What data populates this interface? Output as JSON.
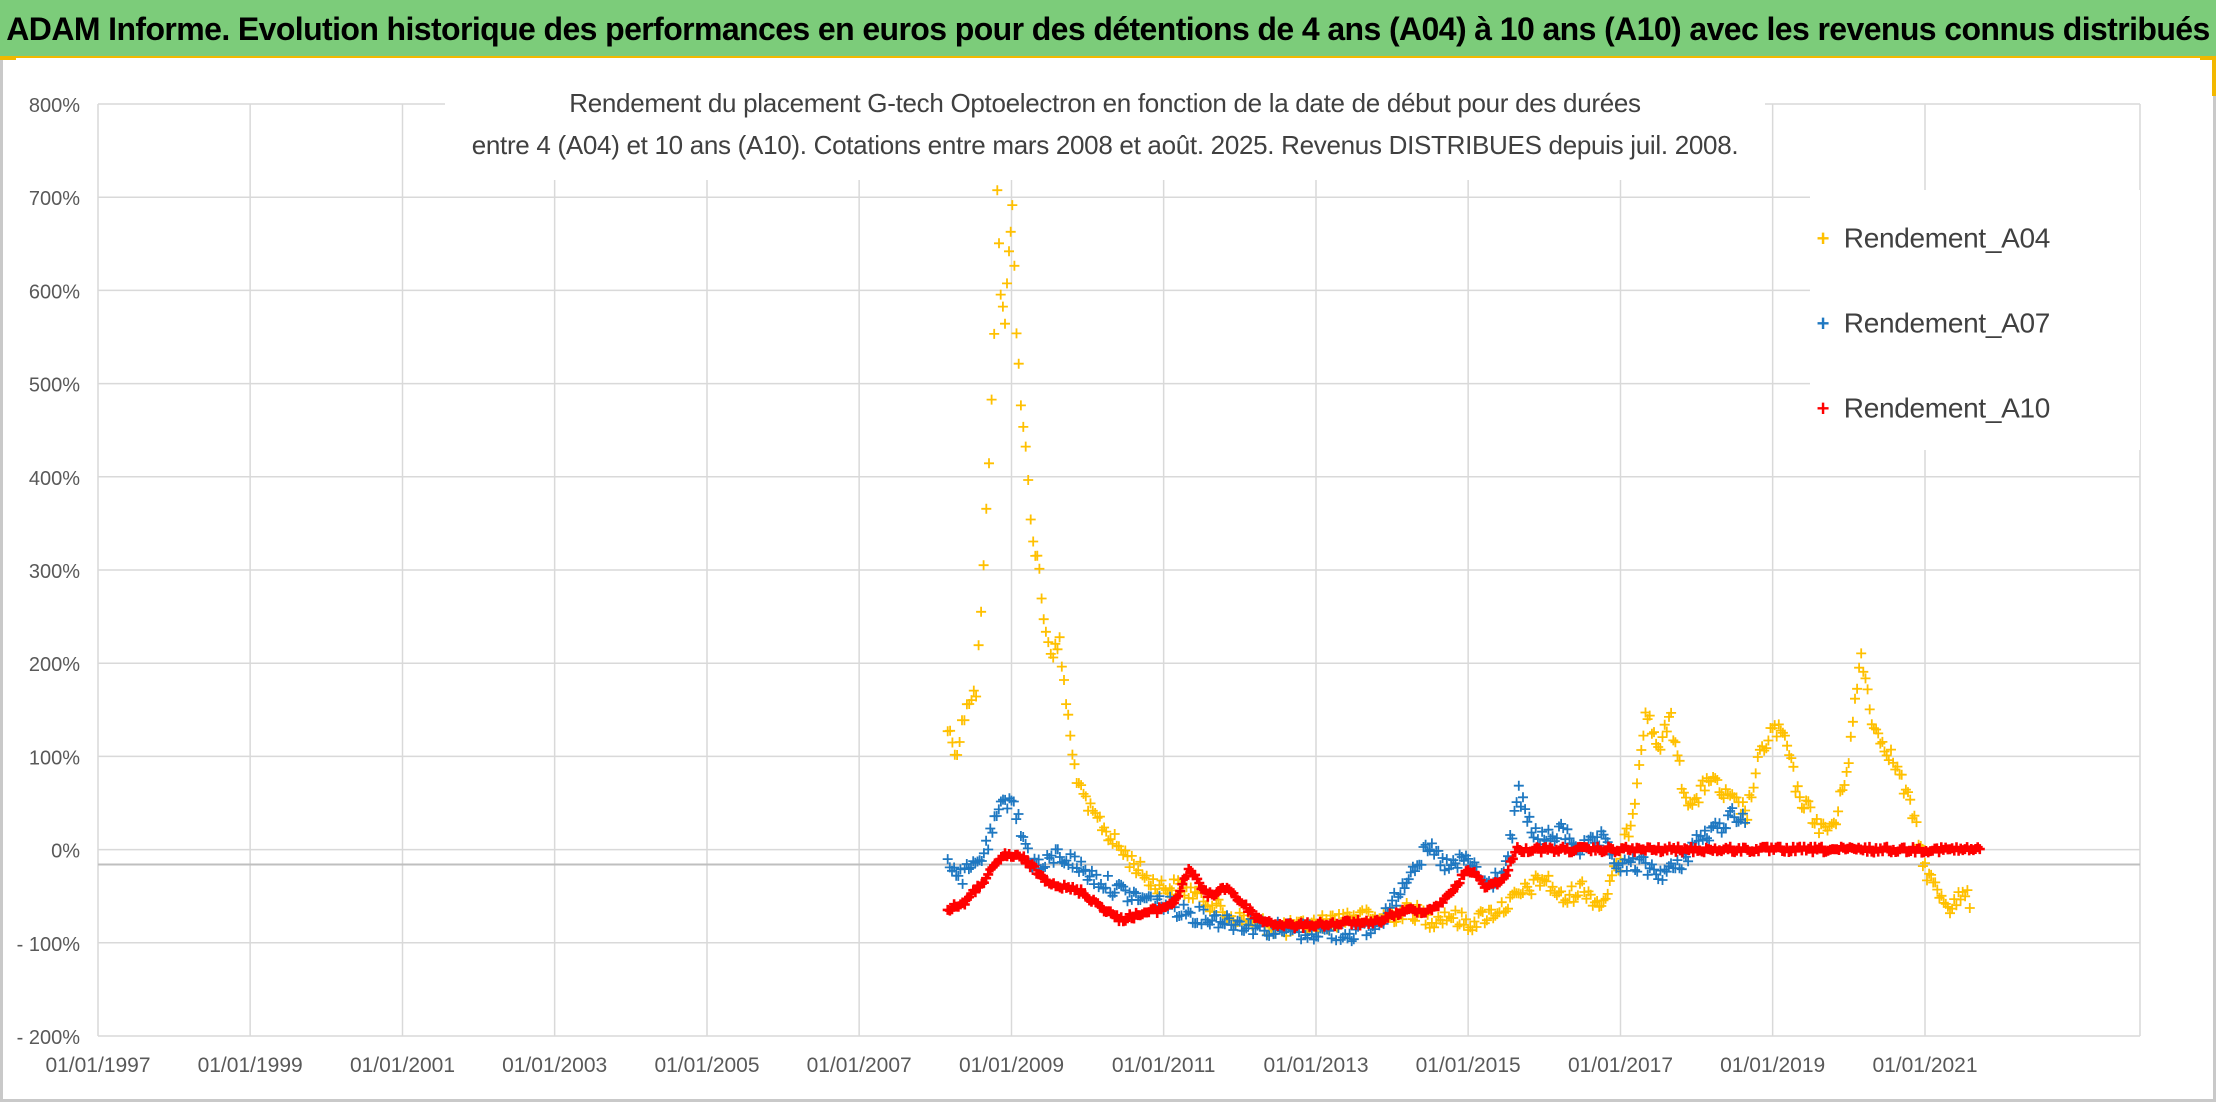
{
  "header": {
    "banner": "ADAM Informe. Evolution historique des performances en euros pour des détentions de 4 ans (A04) à 10 ans (A10) avec les revenus connus distribués"
  },
  "colors": {
    "banner_bg": "#7ccc7a",
    "banner_accent": "#f2b800",
    "A04": "#ffc000",
    "A07": "#1f78c1",
    "A10": "#ff0000",
    "grid": "#d9d9d9",
    "zero_line": "#bfbfbf"
  },
  "chart_data": {
    "type": "scatter",
    "title_line1": "Rendement du placement G-tech Optoelectron  en fonction de la date de début pour des durées",
    "title_line2": "entre 4 (A04) et 10 ans (A10). Cotations entre mars 2008 et août. 2025. Revenus DISTRIBUES depuis juil. 2008.",
    "xlabel": "",
    "ylabel": "",
    "x_range": [
      "1997-01-01",
      "2021-10-01"
    ],
    "x_tick_labels": [
      "01/01/1997",
      "01/01/1999",
      "01/01/2001",
      "01/01/2003",
      "01/01/2005",
      "01/01/2007",
      "01/01/2009",
      "01/01/2011",
      "01/01/2013",
      "01/01/2015",
      "01/01/2017",
      "01/01/2019",
      "01/01/2021"
    ],
    "ylim": [
      -200,
      800
    ],
    "y_tick_labels": [
      "800%",
      "700%",
      "600%",
      "500%",
      "400%",
      "300%",
      "200%",
      "100%",
      "0%",
      "- 100%",
      "- 200%"
    ],
    "grid": true,
    "legend_position": "top-right",
    "series": [
      {
        "name": "Rendement_A04",
        "color": "#ffc000",
        "points": [
          [
            "2008-03-01",
            130
          ],
          [
            "2008-04-15",
            105
          ],
          [
            "2008-06-01",
            160
          ],
          [
            "2008-07-15",
            170
          ],
          [
            "2008-08-20",
            300
          ],
          [
            "2008-09-15",
            420
          ],
          [
            "2008-10-10",
            560
          ],
          [
            "2008-10-25",
            700
          ],
          [
            "2008-11-10",
            600
          ],
          [
            "2008-12-01",
            560
          ],
          [
            "2008-12-20",
            650
          ],
          [
            "2009-01-05",
            690
          ],
          [
            "2009-01-25",
            560
          ],
          [
            "2009-02-15",
            470
          ],
          [
            "2009-03-10",
            430
          ],
          [
            "2009-04-15",
            330
          ],
          [
            "2009-05-15",
            300
          ],
          [
            "2009-06-15",
            230
          ],
          [
            "2009-07-20",
            210
          ],
          [
            "2009-08-20",
            220
          ],
          [
            "2009-09-20",
            160
          ],
          [
            "2009-10-20",
            100
          ],
          [
            "2009-12-01",
            60
          ],
          [
            "2010-01-15",
            40
          ],
          [
            "2010-03-01",
            30
          ],
          [
            "2010-05-01",
            10
          ],
          [
            "2010-07-01",
            -5
          ],
          [
            "2010-09-01",
            -20
          ],
          [
            "2010-11-01",
            -35
          ],
          [
            "2011-01-01",
            -40
          ],
          [
            "2011-03-01",
            -40
          ],
          [
            "2011-05-01",
            -45
          ],
          [
            "2011-07-01",
            -50
          ],
          [
            "2011-09-01",
            -60
          ],
          [
            "2011-11-01",
            -70
          ],
          [
            "2012-01-01",
            -75
          ],
          [
            "2012-04-01",
            -80
          ],
          [
            "2012-07-01",
            -85
          ],
          [
            "2012-10-01",
            -85
          ],
          [
            "2013-01-01",
            -80
          ],
          [
            "2013-04-01",
            -75
          ],
          [
            "2013-07-01",
            -70
          ],
          [
            "2013-10-01",
            -75
          ],
          [
            "2014-01-01",
            -70
          ],
          [
            "2014-04-01",
            -65
          ],
          [
            "2014-07-01",
            -75
          ],
          [
            "2014-10-01",
            -70
          ],
          [
            "2015-01-01",
            -80
          ],
          [
            "2015-04-01",
            -70
          ],
          [
            "2015-07-01",
            -60
          ],
          [
            "2015-10-01",
            -45
          ],
          [
            "2016-01-01",
            -30
          ],
          [
            "2016-04-01",
            -55
          ],
          [
            "2016-07-01",
            -40
          ],
          [
            "2016-10-01",
            -60
          ],
          [
            "2017-01-01",
            -10
          ],
          [
            "2017-03-01",
            40
          ],
          [
            "2017-05-01",
            150
          ],
          [
            "2017-07-01",
            110
          ],
          [
            "2017-09-01",
            140
          ],
          [
            "2017-11-01",
            60
          ],
          [
            "2018-01-01",
            50
          ],
          [
            "2018-03-01",
            80
          ],
          [
            "2018-05-01",
            60
          ],
          [
            "2018-07-01",
            50
          ],
          [
            "2018-09-01",
            40
          ],
          [
            "2018-11-01",
            100
          ],
          [
            "2019-01-01",
            130
          ],
          [
            "2019-03-01",
            120
          ],
          [
            "2019-05-01",
            60
          ],
          [
            "2019-07-01",
            40
          ],
          [
            "2019-09-01",
            20
          ],
          [
            "2019-11-01",
            30
          ],
          [
            "2020-01-01",
            100
          ],
          [
            "2020-03-01",
            210
          ],
          [
            "2020-05-01",
            130
          ],
          [
            "2020-07-01",
            110
          ],
          [
            "2020-09-01",
            80
          ],
          [
            "2020-11-01",
            40
          ],
          [
            "2021-01-01",
            -20
          ],
          [
            "2021-03-01",
            -45
          ],
          [
            "2021-05-01",
            -60
          ],
          [
            "2021-07-01",
            -50
          ],
          [
            "2021-08-15",
            -55
          ]
        ]
      },
      {
        "name": "Rendement_A07",
        "color": "#1f78c1",
        "points": [
          [
            "2008-03-01",
            -10
          ],
          [
            "2008-05-01",
            -30
          ],
          [
            "2008-07-01",
            -20
          ],
          [
            "2008-09-01",
            0
          ],
          [
            "2008-11-01",
            40
          ],
          [
            "2009-01-01",
            60
          ],
          [
            "2009-02-15",
            20
          ],
          [
            "2009-04-01",
            -10
          ],
          [
            "2009-06-01",
            -20
          ],
          [
            "2009-08-01",
            -5
          ],
          [
            "2009-10-01",
            -10
          ],
          [
            "2009-12-01",
            -20
          ],
          [
            "2010-02-01",
            -30
          ],
          [
            "2010-05-01",
            -40
          ],
          [
            "2010-08-01",
            -50
          ],
          [
            "2010-11-01",
            -55
          ],
          [
            "2011-02-01",
            -60
          ],
          [
            "2011-06-01",
            -70
          ],
          [
            "2011-10-01",
            -75
          ],
          [
            "2012-02-01",
            -80
          ],
          [
            "2012-06-01",
            -85
          ],
          [
            "2012-10-01",
            -88
          ],
          [
            "2013-02-01",
            -88
          ],
          [
            "2013-06-01",
            -90
          ],
          [
            "2013-10-01",
            -85
          ],
          [
            "2014-01-01",
            -60
          ],
          [
            "2014-04-01",
            -20
          ],
          [
            "2014-07-01",
            0
          ],
          [
            "2014-10-01",
            -20
          ],
          [
            "2015-01-01",
            -10
          ],
          [
            "2015-04-01",
            -40
          ],
          [
            "2015-07-01",
            -20
          ],
          [
            "2015-09-01",
            60
          ],
          [
            "2015-11-01",
            20
          ],
          [
            "2016-01-01",
            10
          ],
          [
            "2016-04-01",
            20
          ],
          [
            "2016-07-01",
            0
          ],
          [
            "2016-10-01",
            10
          ],
          [
            "2017-01-01",
            -20
          ],
          [
            "2017-04-01",
            -15
          ],
          [
            "2017-07-01",
            -25
          ],
          [
            "2017-10-01",
            -20
          ],
          [
            "2018-01-01",
            10
          ],
          [
            "2018-04-01",
            20
          ],
          [
            "2018-07-01",
            40
          ],
          [
            "2018-09-01",
            30
          ]
        ]
      },
      {
        "name": "Rendement_A10",
        "color": "#ff0000",
        "points": [
          [
            "2008-03-01",
            -65
          ],
          [
            "2008-06-01",
            -55
          ],
          [
            "2008-09-01",
            -30
          ],
          [
            "2008-12-01",
            -5
          ],
          [
            "2009-03-01",
            -10
          ],
          [
            "2009-06-01",
            -30
          ],
          [
            "2009-09-01",
            -40
          ],
          [
            "2009-12-01",
            -45
          ],
          [
            "2010-03-01",
            -60
          ],
          [
            "2010-06-01",
            -75
          ],
          [
            "2010-09-01",
            -70
          ],
          [
            "2010-12-01",
            -65
          ],
          [
            "2011-03-01",
            -55
          ],
          [
            "2011-05-01",
            -20
          ],
          [
            "2011-08-01",
            -50
          ],
          [
            "2011-11-01",
            -40
          ],
          [
            "2012-01-01",
            -55
          ],
          [
            "2012-04-01",
            -75
          ],
          [
            "2012-07-01",
            -80
          ],
          [
            "2012-10-01",
            -82
          ],
          [
            "2013-01-01",
            -80
          ],
          [
            "2013-04-01",
            -80
          ],
          [
            "2013-07-01",
            -78
          ],
          [
            "2013-10-01",
            -80
          ],
          [
            "2014-01-01",
            -70
          ],
          [
            "2014-04-01",
            -65
          ],
          [
            "2014-07-01",
            -65
          ],
          [
            "2014-10-01",
            -50
          ],
          [
            "2015-01-01",
            -20
          ],
          [
            "2015-04-01",
            -40
          ],
          [
            "2015-07-01",
            -30
          ],
          [
            "2015-08-15",
            0
          ],
          [
            "2016-06-01",
            0
          ],
          [
            "2017-06-01",
            0
          ],
          [
            "2018-06-01",
            0
          ],
          [
            "2019-06-01",
            0
          ],
          [
            "2020-06-01",
            0
          ],
          [
            "2021-06-01",
            0
          ],
          [
            "2021-10-01",
            0
          ]
        ]
      }
    ]
  }
}
